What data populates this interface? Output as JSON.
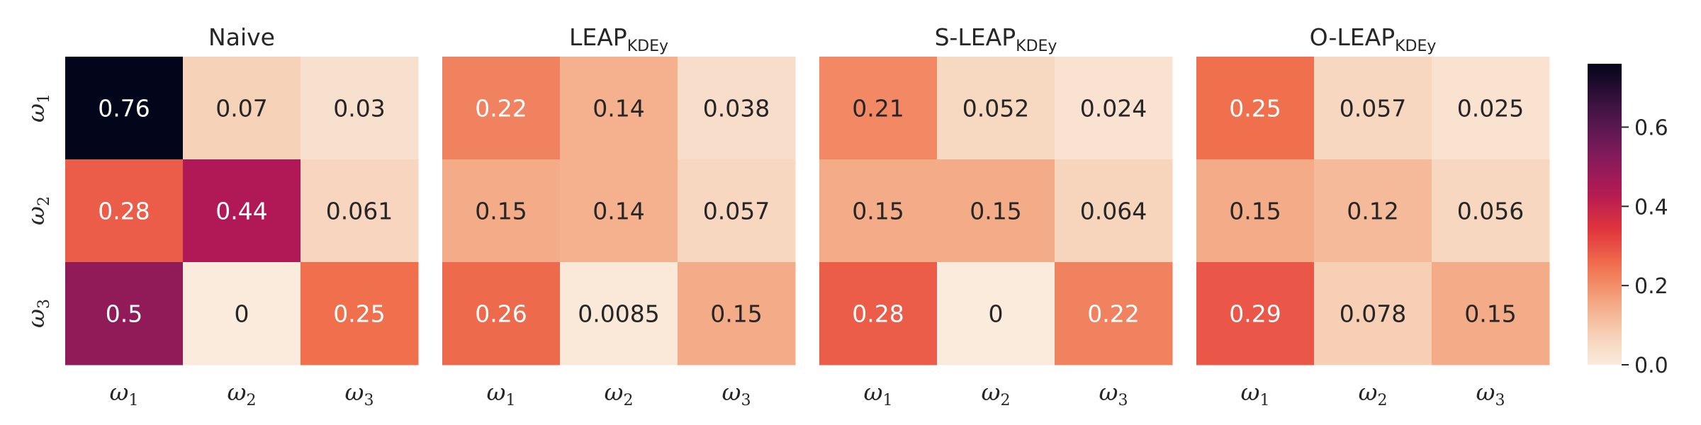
{
  "chart_data": {
    "type": "heatmap",
    "colormap": "rocket_r",
    "vmin": 0,
    "vmax": 0.76,
    "row_labels": [
      "ω1",
      "ω2",
      "ω3"
    ],
    "col_labels": [
      "ω1",
      "ω2",
      "ω3"
    ],
    "panels": [
      {
        "title": "Naive",
        "title_sub": "",
        "values": [
          [
            0.76,
            0.07,
            0.03
          ],
          [
            0.28,
            0.44,
            0.061
          ],
          [
            0.5,
            0,
            0.25
          ]
        ]
      },
      {
        "title": "LEAP",
        "title_sub": "KDEy",
        "values": [
          [
            0.22,
            0.14,
            0.038
          ],
          [
            0.15,
            0.14,
            0.057
          ],
          [
            0.26,
            0.0085,
            0.15
          ]
        ]
      },
      {
        "title": "S-LEAP",
        "title_sub": "KDEy",
        "values": [
          [
            0.21,
            0.052,
            0.024
          ],
          [
            0.15,
            0.15,
            0.064
          ],
          [
            0.28,
            0,
            0.22
          ]
        ]
      },
      {
        "title": "O-LEAP",
        "title_sub": "KDEy",
        "values": [
          [
            0.25,
            0.057,
            0.025
          ],
          [
            0.15,
            0.12,
            0.056
          ],
          [
            0.29,
            0.078,
            0.15
          ]
        ]
      }
    ],
    "colorbar": {
      "ticks": [
        0.0,
        0.2,
        0.4,
        0.6
      ],
      "tick_labels": [
        "0.0",
        "0.2",
        "0.4",
        "0.6"
      ]
    }
  }
}
